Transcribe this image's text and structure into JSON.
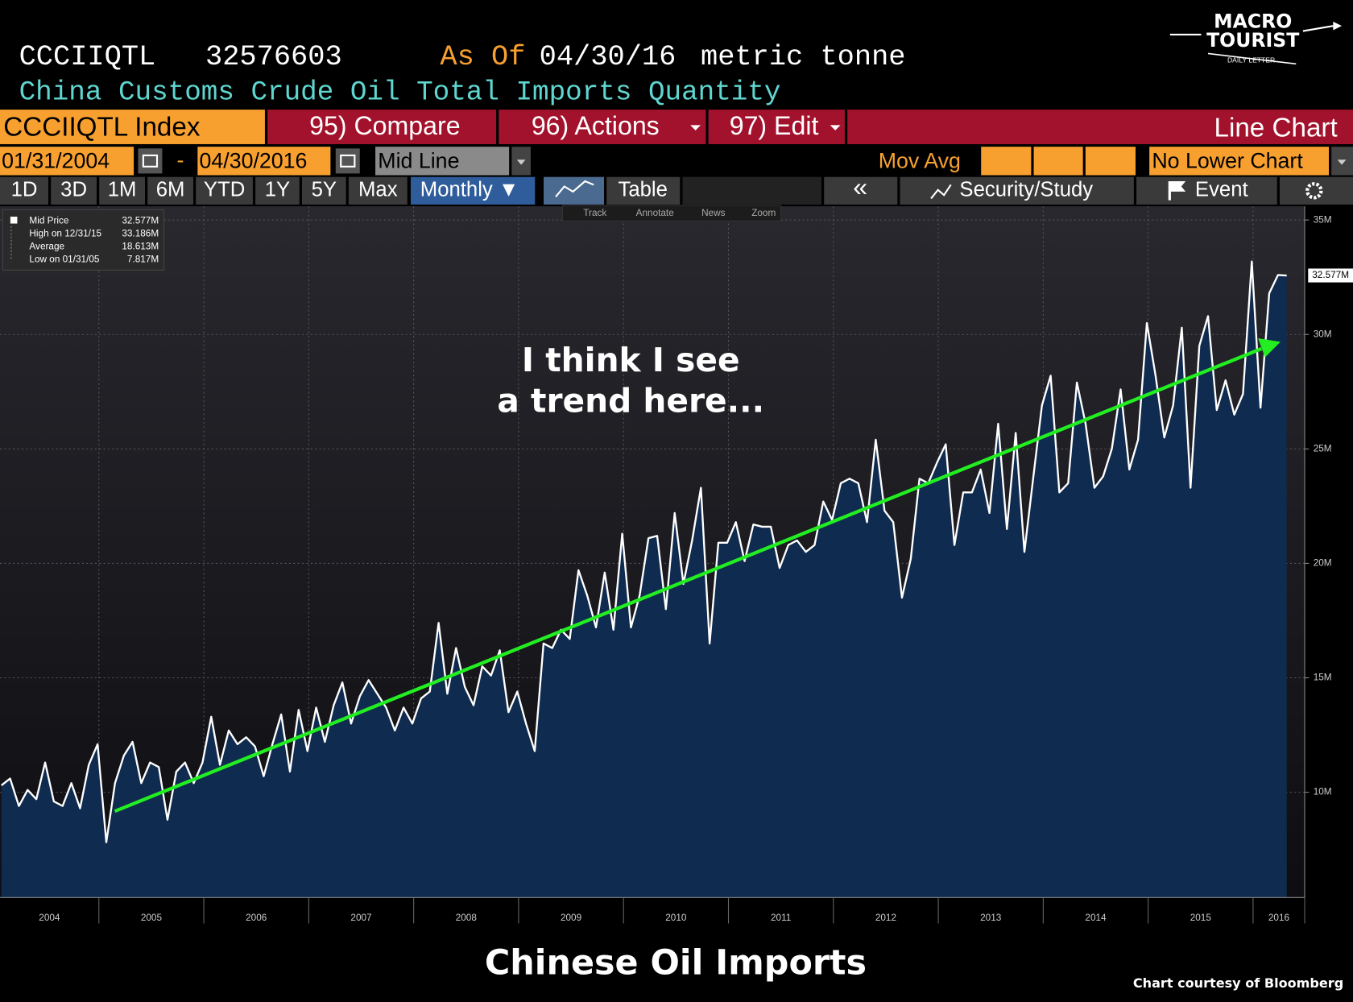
{
  "header": {
    "ticker": "CCCIIQTL",
    "last_value": "32576603",
    "as_of_label": "As Of",
    "as_of_date": "04/30/16",
    "unit": "metric tonne",
    "description": "China Customs Crude Oil Total Imports Quantity"
  },
  "logo": {
    "line1": "MACRO",
    "line2": "TOURIST",
    "line3": "DAILY LETTER"
  },
  "toolbar": {
    "security": "CCCIIQTL Index",
    "compare": "95) Compare",
    "actions": "96) Actions",
    "edit": "97) Edit",
    "chart_kind": "Line Chart",
    "start_date": "01/31/2004",
    "date_separator": "-",
    "end_date": "04/30/2016",
    "price_field": "Mid Line",
    "moving_average": "Mov Avg",
    "lower_chart": "No Lower Chart",
    "periods": [
      "1D",
      "3D",
      "1M",
      "6M",
      "YTD",
      "1Y",
      "5Y",
      "Max"
    ],
    "frequency": "Monthly ▼",
    "table": "Table",
    "back": "«",
    "study": "Security/Study",
    "event": "Event",
    "chart_tools": [
      "Track",
      "Annotate",
      "News",
      "Zoom"
    ]
  },
  "chart_data": {
    "type": "area",
    "x": [
      "2004-01",
      "2004-02",
      "2004-03",
      "2004-04",
      "2004-05",
      "2004-06",
      "2004-07",
      "2004-08",
      "2004-09",
      "2004-10",
      "2004-11",
      "2004-12",
      "2005-01",
      "2005-02",
      "2005-03",
      "2005-04",
      "2005-05",
      "2005-06",
      "2005-07",
      "2005-08",
      "2005-09",
      "2005-10",
      "2005-11",
      "2005-12",
      "2006-01",
      "2006-02",
      "2006-03",
      "2006-04",
      "2006-05",
      "2006-06",
      "2006-07",
      "2006-08",
      "2006-09",
      "2006-10",
      "2006-11",
      "2006-12",
      "2007-01",
      "2007-02",
      "2007-03",
      "2007-04",
      "2007-05",
      "2007-06",
      "2007-07",
      "2007-08",
      "2007-09",
      "2007-10",
      "2007-11",
      "2007-12",
      "2008-01",
      "2008-02",
      "2008-03",
      "2008-04",
      "2008-05",
      "2008-06",
      "2008-07",
      "2008-08",
      "2008-09",
      "2008-10",
      "2008-11",
      "2008-12",
      "2009-01",
      "2009-02",
      "2009-03",
      "2009-04",
      "2009-05",
      "2009-06",
      "2009-07",
      "2009-08",
      "2009-09",
      "2009-10",
      "2009-11",
      "2009-12",
      "2010-01",
      "2010-02",
      "2010-03",
      "2010-04",
      "2010-05",
      "2010-06",
      "2010-07",
      "2010-08",
      "2010-09",
      "2010-10",
      "2010-11",
      "2010-12",
      "2011-01",
      "2011-02",
      "2011-03",
      "2011-04",
      "2011-05",
      "2011-06",
      "2011-07",
      "2011-08",
      "2011-09",
      "2011-10",
      "2011-11",
      "2011-12",
      "2012-01",
      "2012-02",
      "2012-03",
      "2012-04",
      "2012-05",
      "2012-06",
      "2012-07",
      "2012-08",
      "2012-09",
      "2012-10",
      "2012-11",
      "2012-12",
      "2013-01",
      "2013-02",
      "2013-03",
      "2013-04",
      "2013-05",
      "2013-06",
      "2013-07",
      "2013-08",
      "2013-09",
      "2013-10",
      "2013-11",
      "2013-12",
      "2014-01",
      "2014-02",
      "2014-03",
      "2014-04",
      "2014-05",
      "2014-06",
      "2014-07",
      "2014-08",
      "2014-09",
      "2014-10",
      "2014-11",
      "2014-12",
      "2015-01",
      "2015-02",
      "2015-03",
      "2015-04",
      "2015-05",
      "2015-06",
      "2015-07",
      "2015-08",
      "2015-09",
      "2015-10",
      "2015-11",
      "2015-12",
      "2016-01",
      "2016-02",
      "2016-03",
      "2016-04"
    ],
    "series": [
      {
        "name": "Mid Price",
        "color": "#ffffff",
        "fill": "#0f2b4f",
        "values": [
          10.3,
          10.6,
          9.4,
          10.1,
          9.7,
          11.3,
          9.6,
          9.4,
          10.4,
          9.3,
          11.2,
          12.1,
          7.817,
          10.4,
          11.6,
          12.2,
          10.4,
          11.3,
          11.1,
          8.8,
          10.9,
          11.3,
          10.4,
          11.3,
          13.3,
          11.2,
          12.7,
          12.1,
          12.4,
          12.0,
          10.7,
          12.1,
          13.4,
          10.9,
          13.6,
          11.8,
          13.7,
          12.2,
          13.8,
          14.8,
          13.0,
          14.2,
          14.9,
          14.3,
          13.7,
          12.7,
          13.7,
          13.0,
          14.1,
          14.4,
          17.4,
          14.3,
          16.3,
          14.6,
          13.8,
          15.5,
          15.1,
          16.2,
          13.5,
          14.4,
          13.0,
          11.8,
          16.5,
          16.3,
          17.1,
          16.7,
          19.7,
          18.6,
          17.2,
          19.6,
          17.1,
          21.3,
          17.2,
          18.6,
          21.1,
          21.2,
          18.0,
          22.2,
          19.1,
          21.0,
          23.3,
          16.5,
          20.9,
          20.9,
          21.8,
          20.1,
          21.7,
          21.6,
          21.6,
          19.8,
          20.8,
          21.0,
          20.5,
          20.8,
          22.7,
          21.9,
          23.5,
          23.7,
          23.5,
          21.8,
          25.4,
          22.3,
          21.8,
          18.5,
          20.2,
          23.7,
          23.5,
          24.4,
          25.2,
          20.8,
          23.1,
          23.1,
          24.1,
          22.2,
          26.1,
          21.5,
          25.7,
          20.5,
          23.7,
          26.9,
          28.2,
          23.1,
          23.5,
          27.9,
          26.1,
          23.3,
          23.8,
          25.0,
          27.6,
          24.1,
          25.4,
          30.5,
          28.2,
          25.5,
          26.9,
          30.3,
          23.3,
          29.5,
          30.8,
          26.7,
          28.0,
          26.5,
          27.4,
          33.186,
          26.8,
          31.8,
          32.6,
          32.577
        ]
      }
    ],
    "last_value_label": "32.577M",
    "legend_stats": [
      {
        "label": "High on 12/31/15",
        "value": "33.186M"
      },
      {
        "label": "Average",
        "value": "18.613M"
      },
      {
        "label": "Low on 01/31/05",
        "value": "7.817M"
      }
    ],
    "ylim": [
      5.4,
      35.6
    ],
    "yticks": [
      {
        "value": 10,
        "label": "10M"
      },
      {
        "value": 15,
        "label": "15M"
      },
      {
        "value": 20,
        "label": "20M"
      },
      {
        "value": 25,
        "label": "25M"
      },
      {
        "value": 30,
        "label": "30M"
      },
      {
        "value": 35,
        "label": "35M"
      }
    ],
    "xticks": [
      2004,
      2005,
      2006,
      2007,
      2008,
      2009,
      2010,
      2011,
      2012,
      2013,
      2014,
      2015,
      2016
    ],
    "grid": true,
    "annotation": [
      "I think I see",
      "a trend here..."
    ],
    "title": "Chinese Oil Imports",
    "source": "Chart courtesy of Bloomberg"
  }
}
